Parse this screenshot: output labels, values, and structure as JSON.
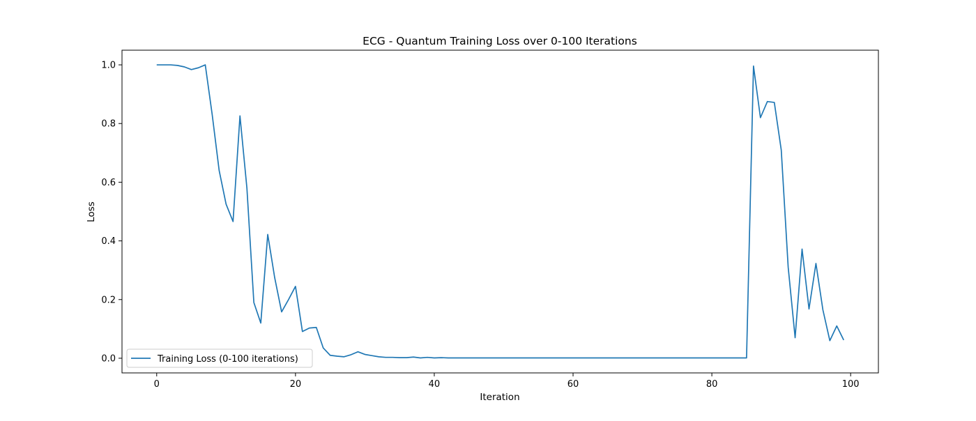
{
  "chart_data": {
    "type": "line",
    "title": "ECG - Quantum Training Loss over 0-100 Iterations",
    "xlabel": "Iteration",
    "ylabel": "Loss",
    "xlim": [
      -5,
      104
    ],
    "ylim": [
      -0.05,
      1.05
    ],
    "xticks": [
      0,
      20,
      40,
      60,
      80,
      100
    ],
    "yticks": [
      0.0,
      0.2,
      0.4,
      0.6,
      0.8,
      1.0
    ],
    "xtick_labels": [
      "0",
      "20",
      "40",
      "60",
      "80",
      "100"
    ],
    "ytick_labels": [
      "0.0",
      "0.2",
      "0.4",
      "0.6",
      "0.8",
      "1.0"
    ],
    "grid": false,
    "legend_position": "lower-left",
    "series": [
      {
        "name": "Training Loss (0-100 iterations)",
        "color": "#1f77b4",
        "x": [
          0,
          1,
          2,
          3,
          4,
          5,
          6,
          7,
          8,
          9,
          10,
          11,
          12,
          13,
          14,
          15,
          16,
          17,
          18,
          19,
          20,
          21,
          22,
          23,
          24,
          25,
          26,
          27,
          28,
          29,
          30,
          31,
          32,
          33,
          34,
          35,
          36,
          37,
          38,
          39,
          40,
          41,
          42,
          43,
          44,
          45,
          46,
          47,
          48,
          49,
          50,
          51,
          52,
          53,
          54,
          55,
          56,
          57,
          58,
          59,
          60,
          61,
          62,
          63,
          64,
          65,
          66,
          67,
          68,
          69,
          70,
          71,
          72,
          73,
          74,
          75,
          76,
          77,
          78,
          79,
          80,
          81,
          82,
          83,
          84,
          85,
          86,
          87,
          88,
          89,
          90,
          91,
          92,
          93,
          94,
          95,
          96,
          97,
          98,
          99
        ],
        "y": [
          1.0,
          1.0,
          1.0,
          0.998,
          0.993,
          0.984,
          0.99,
          1.0,
          0.83,
          0.64,
          0.525,
          0.466,
          0.826,
          0.58,
          0.19,
          0.12,
          0.422,
          0.275,
          0.158,
          0.2,
          0.245,
          0.091,
          0.103,
          0.105,
          0.035,
          0.01,
          0.007,
          0.005,
          0.012,
          0.022,
          0.013,
          0.009,
          0.005,
          0.003,
          0.003,
          0.002,
          0.002,
          0.004,
          0.001,
          0.003,
          0.001,
          0.002,
          0.001,
          0.001,
          0.001,
          0.001,
          0.001,
          0.001,
          0.001,
          0.001,
          0.001,
          0.001,
          0.001,
          0.001,
          0.001,
          0.001,
          0.001,
          0.001,
          0.001,
          0.001,
          0.001,
          0.001,
          0.001,
          0.001,
          0.001,
          0.001,
          0.001,
          0.001,
          0.001,
          0.001,
          0.001,
          0.001,
          0.001,
          0.001,
          0.001,
          0.001,
          0.001,
          0.001,
          0.001,
          0.001,
          0.001,
          0.001,
          0.001,
          0.001,
          0.001,
          0.001,
          0.996,
          0.82,
          0.875,
          0.872,
          0.71,
          0.31,
          0.07,
          0.372,
          0.168,
          0.323,
          0.165,
          0.06,
          0.11,
          0.062
        ]
      }
    ]
  }
}
